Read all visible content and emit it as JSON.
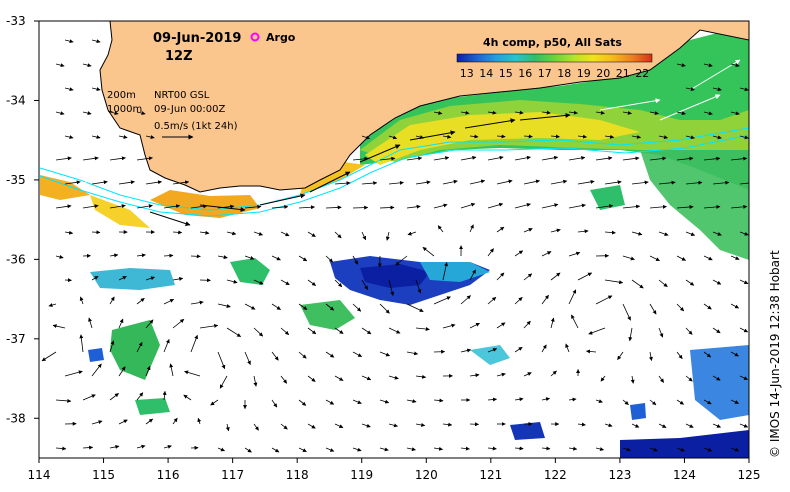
{
  "title": {
    "date": "09-Jun-2019",
    "time": "12Z",
    "argo_label": "Argo"
  },
  "info": {
    "contour_200": "200m",
    "contour_1000": "1000m",
    "product": "NRT00 GSL",
    "product_time": "09-Jun 00:00Z",
    "vector_scale": "0.5m/s (1kt 24h)"
  },
  "colorbar": {
    "title": "4h comp, p50, All Sats",
    "ticks": [
      "13",
      "14",
      "15",
      "16",
      "17",
      "18",
      "19",
      "20",
      "21",
      "22"
    ],
    "min": 12.5,
    "max": 22.5,
    "colors": [
      "#0b1fa3",
      "#1f5fd6",
      "#1fa0e0",
      "#25c6c8",
      "#2fbf6a",
      "#6fd13a",
      "#b9e22a",
      "#f2e21f",
      "#f5b81f",
      "#ee7d1e",
      "#d9301a"
    ]
  },
  "axes": {
    "x_ticks": [
      "114",
      "115",
      "116",
      "117",
      "118",
      "119",
      "120",
      "121",
      "122",
      "123",
      "124",
      "125"
    ],
    "y_ticks": [
      "-33",
      "-34",
      "-35",
      "-36",
      "-37",
      "-38"
    ],
    "x_range": [
      114,
      125
    ],
    "y_range": [
      -38.5,
      -33
    ]
  },
  "credit": "© IMOS 14-Jun-2019 12:38 Hobart",
  "colors": {
    "land": "#fbc58e",
    "ocean": "#ffffff",
    "isobath": "#00e5ff",
    "argo": "#ff00ff"
  }
}
